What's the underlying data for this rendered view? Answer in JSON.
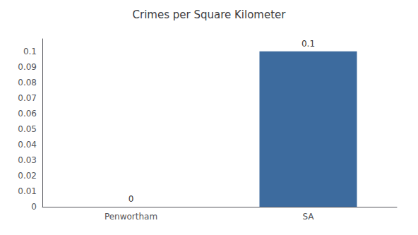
{
  "chart_data": {
    "type": "bar",
    "title": "Crimes per Square Kilometer",
    "categories": [
      "Penwortham",
      "SA"
    ],
    "values": [
      0.0,
      0.1
    ],
    "color": "#3d6b9e",
    "ylim": [
      0,
      0.108
    ],
    "yticks": [
      0,
      0.01,
      0.02,
      0.03,
      0.04,
      0.05,
      0.06,
      0.07,
      0.08,
      0.09,
      0.1
    ],
    "grid": false,
    "data_labels": true
  }
}
